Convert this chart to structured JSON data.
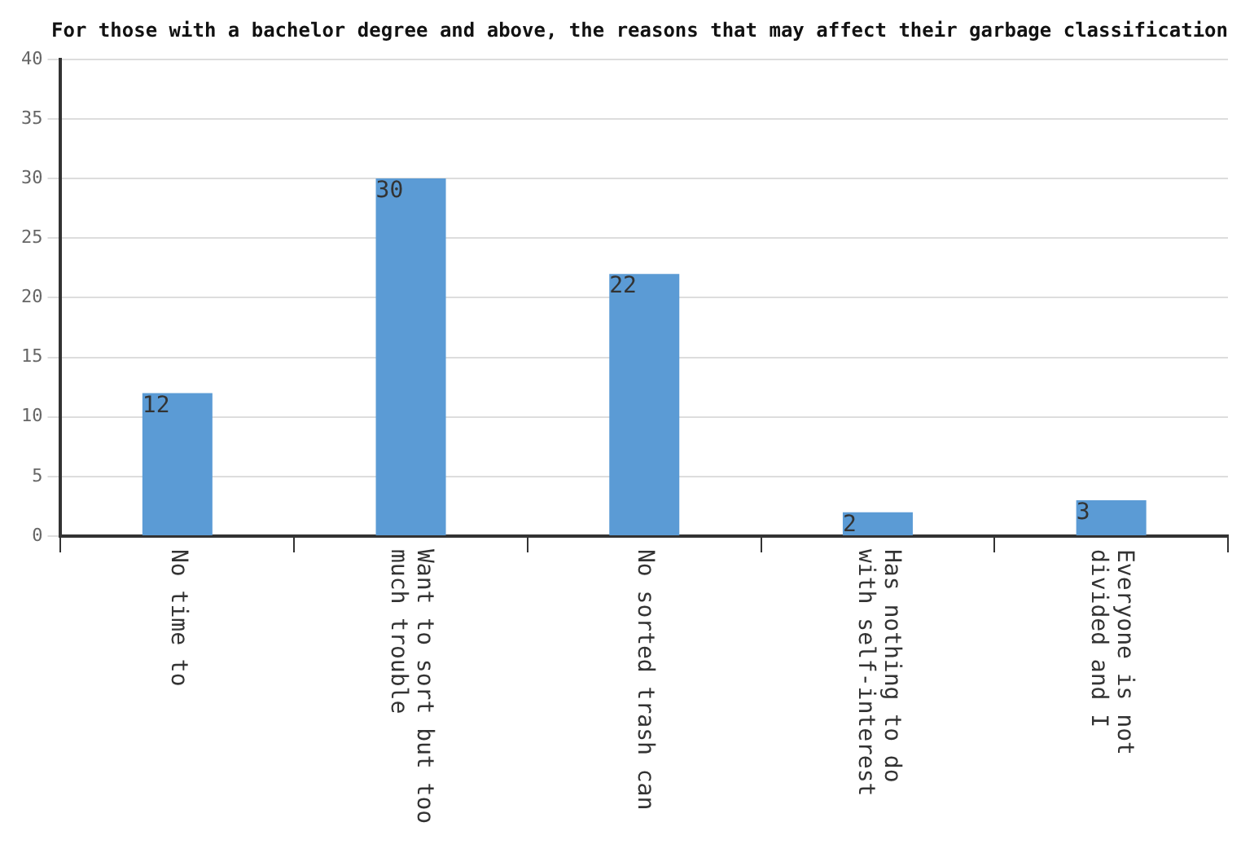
{
  "chart_data": {
    "type": "bar",
    "title": "For those with a bachelor degree and above, the reasons that may affect their garbage classification",
    "categories": [
      "No time to",
      "Want to sort but too\nmuch trouble",
      "No sorted trash can",
      "Has nothing to do\nwith self-interest",
      "Everyone is not\ndivided and I"
    ],
    "values": [
      12,
      30,
      22,
      2,
      3
    ],
    "color": "#5b9bd5",
    "ylim": [
      0,
      40
    ],
    "yticks": [
      0,
      5,
      10,
      15,
      20,
      25,
      30,
      35,
      40
    ],
    "grid": "y",
    "data_labels": true
  }
}
